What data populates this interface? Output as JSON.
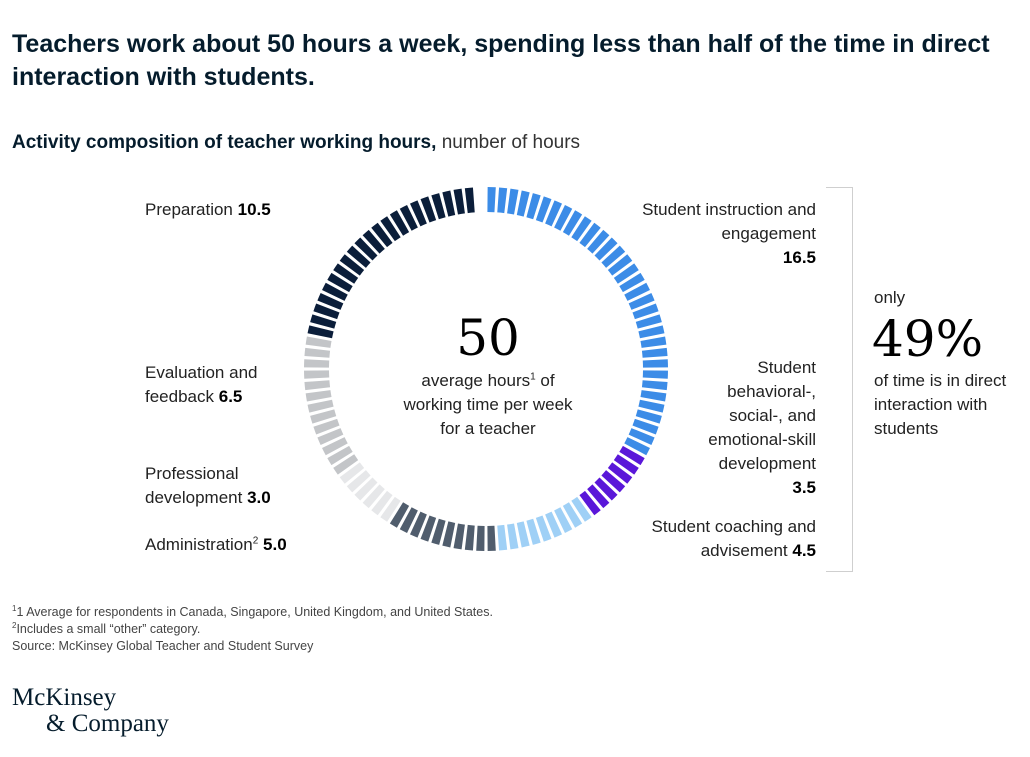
{
  "title": "Teachers work about 50 hours a week, spending less than half of the time in direct interaction with students.",
  "subtitle_bold": "Activity composition of teacher working hours,",
  "subtitle_unit": "number of hours",
  "center": {
    "number": "50",
    "text_1": "average hours",
    "sup": "1",
    "text_2": " of working time per week for a teacher"
  },
  "callout": {
    "only": "only",
    "percent": "49%",
    "text": "of time is in direct interaction with students"
  },
  "labels": {
    "preparation": {
      "name": "Preparation",
      "value": "10.5"
    },
    "evaluation": {
      "name": "Evaluation and feedback",
      "value": "6.5"
    },
    "professional": {
      "name": "Professional development",
      "value": "3.0"
    },
    "administration": {
      "name": "Administration",
      "sup": "2",
      "value": "5.0"
    },
    "instruction": {
      "name": "Student instruction and engagement",
      "value": "16.5"
    },
    "behavioral": {
      "name": "Student behavioral-, social-, and emotional-skill development",
      "value": "3.5"
    },
    "coaching": {
      "name": "Student coaching and advisement",
      "value": "4.5"
    }
  },
  "footnotes": {
    "f1_sup": "1",
    "f1": "1 Average for respondents in Canada, Singapore, United Kingdom, and United States.",
    "f2_sup": "2",
    "f2": "Includes a small “other” category.",
    "source": "Source: McKinsey Global Teacher and Student Survey"
  },
  "logo": {
    "line1": "McKinsey",
    "line2": "& Company"
  },
  "chart_data": {
    "type": "pie",
    "variant": "segmented-donut",
    "total": 50,
    "segment_unit_hours": 0.5,
    "start": "top, clockwise",
    "series": [
      {
        "name": "Student instruction and engagement",
        "value": 16.5,
        "color": "#3c8ce7"
      },
      {
        "name": "Student behavioral-, social-, and emotional-skill development",
        "value": 3.5,
        "color": "#5a17d9"
      },
      {
        "name": "Student coaching and advisement",
        "value": 4.5,
        "color": "#9fd0f6"
      },
      {
        "name": "Administration",
        "value": 5.0,
        "color": "#505d6d"
      },
      {
        "name": "Professional development",
        "value": 3.0,
        "color": "#e6e7e9"
      },
      {
        "name": "Evaluation and feedback",
        "value": 6.5,
        "color": "#c3c5c8"
      },
      {
        "name": "Preparation",
        "value": 10.5,
        "color": "#0b1e3a"
      }
    ]
  }
}
